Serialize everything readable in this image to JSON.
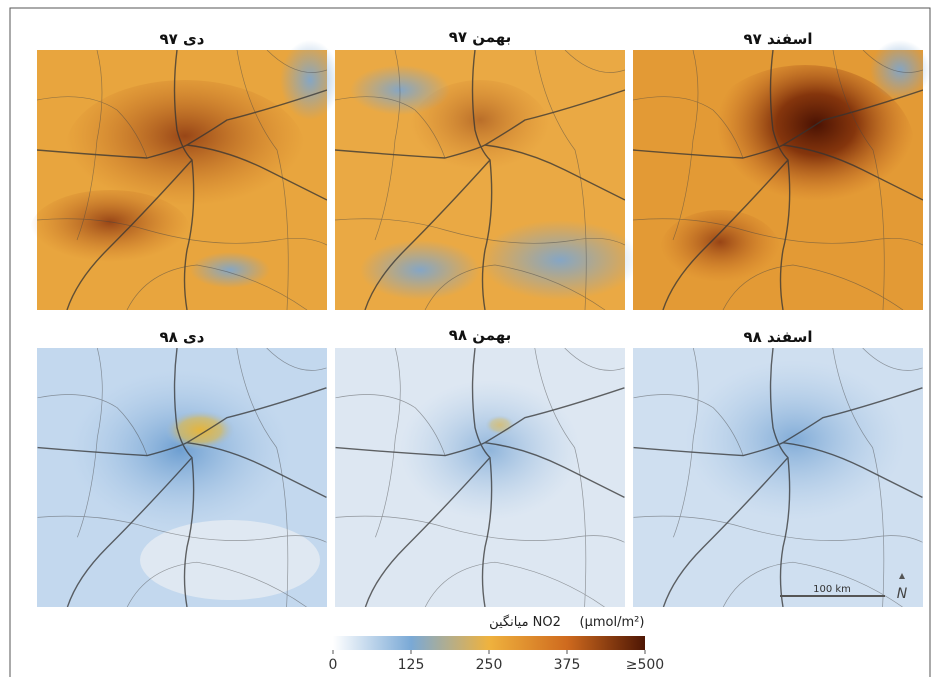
{
  "panels": [
    {
      "title": "دی ۹۷"
    },
    {
      "title": "بهمن ۹۷"
    },
    {
      "title": "اسفند ۹۷"
    },
    {
      "title": "دی ۹۸"
    },
    {
      "title": "بهمن ۹۸"
    },
    {
      "title": "اسفند ۹۸"
    }
  ],
  "colorbar": {
    "title": "میانگین NO2",
    "unit": "(μmol/m²)",
    "range": [
      0,
      500
    ],
    "ticks": [
      0,
      125,
      250,
      375,
      {
        "value": 500,
        "label": "≥500"
      }
    ]
  },
  "scale_bar": "100 km",
  "north": "N"
}
